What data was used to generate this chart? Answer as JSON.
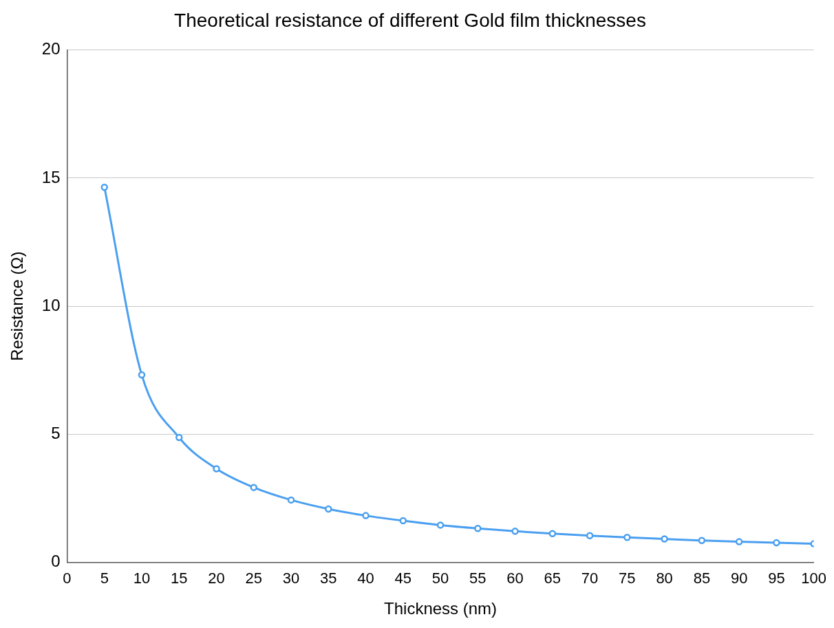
{
  "chart_data": {
    "type": "line",
    "title": "Theoretical resistance of different Gold film thicknesses",
    "xlabel": "Thickness (nm)",
    "ylabel": "Resistance (Ω)",
    "x": [
      5,
      10,
      15,
      20,
      25,
      30,
      35,
      40,
      45,
      50,
      55,
      60,
      65,
      70,
      75,
      80,
      85,
      90,
      95,
      100
    ],
    "series": [
      {
        "color": "#4a9ff0",
        "values": [
          14.64,
          7.32,
          4.88,
          3.66,
          2.93,
          2.44,
          2.09,
          1.83,
          1.63,
          1.46,
          1.33,
          1.22,
          1.13,
          1.05,
          0.98,
          0.92,
          0.86,
          0.81,
          0.77,
          0.73
        ]
      }
    ],
    "xlim": [
      0,
      100
    ],
    "xticks": [
      0,
      5,
      10,
      15,
      20,
      25,
      30,
      35,
      40,
      45,
      50,
      55,
      60,
      65,
      70,
      75,
      80,
      85,
      90,
      95,
      100
    ],
    "ylim": [
      0,
      20
    ],
    "yticks": [
      0,
      5,
      10,
      15,
      20
    ],
    "grid": "y",
    "marker": "circle",
    "line_style": "solid"
  }
}
